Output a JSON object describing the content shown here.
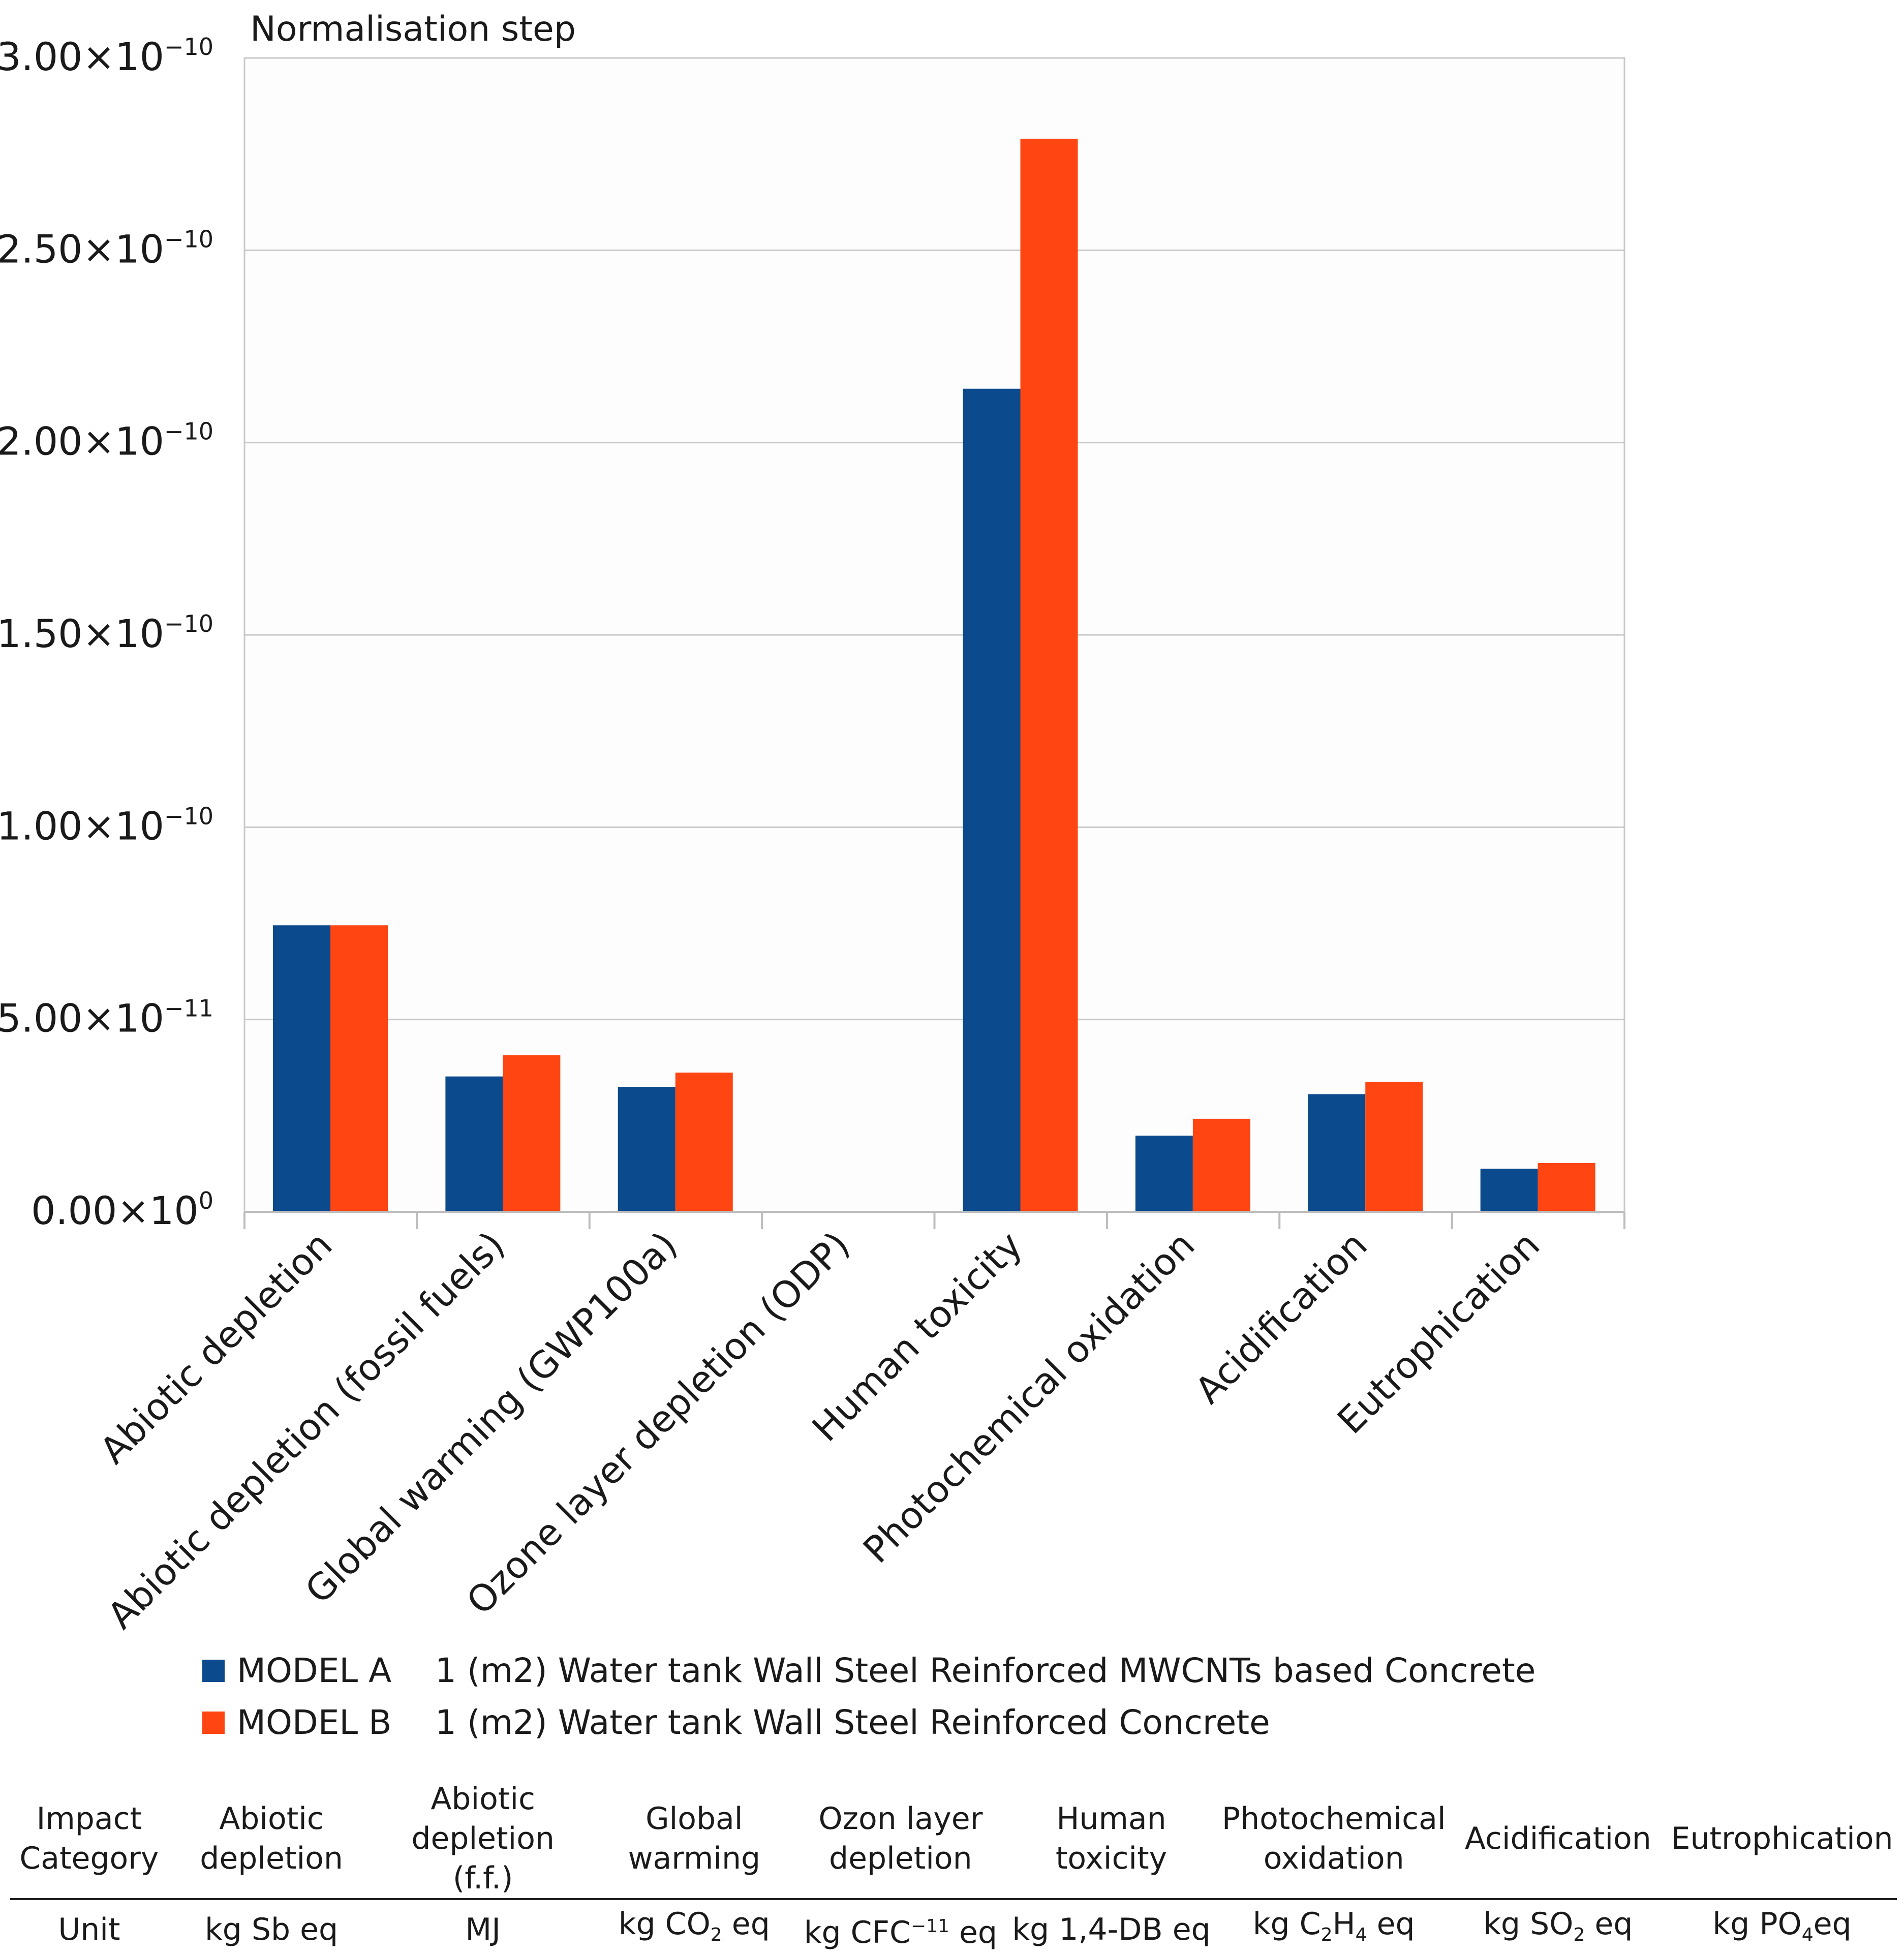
{
  "chart_data": {
    "type": "bar",
    "title": "Normalisation step",
    "xlabel": "",
    "ylabel": "",
    "ylim": [
      0,
      3e-10
    ],
    "grid": true,
    "yticks": [
      {
        "value": 0,
        "mantissa": "0.00×10",
        "exp": "0"
      },
      {
        "value": 5e-11,
        "mantissa": "5.00×10",
        "exp": "−11"
      },
      {
        "value": 1e-10,
        "mantissa": "1.00×10",
        "exp": "−10"
      },
      {
        "value": 1.5e-10,
        "mantissa": "1.50×10",
        "exp": "−10"
      },
      {
        "value": 2e-10,
        "mantissa": "2.00×10",
        "exp": "−10"
      },
      {
        "value": 2.5e-10,
        "mantissa": "2.50×10",
        "exp": "−10"
      },
      {
        "value": 3e-10,
        "mantissa": "3.00×10",
        "exp": "−10"
      }
    ],
    "categories": [
      "Abiotic depletion",
      "Abiotic depletion (fossil fuels)",
      "Global warming (GWP100a)",
      "Ozone layer depletion (ODP)",
      "Human toxicity",
      "Photochemical oxidation",
      "Acidification",
      "Eutrophication"
    ],
    "series": [
      {
        "name": "MODEL A",
        "color": "#0b4a8c",
        "values": [
          7.45e-11,
          3.52e-11,
          3.25e-11,
          0.0,
          2.14e-10,
          1.98e-11,
          3.06e-11,
          1.12e-11
        ]
      },
      {
        "name": "MODEL B",
        "color": "#fe4512",
        "values": [
          7.45e-11,
          4.07e-11,
          3.62e-11,
          0.0,
          2.79e-10,
          2.42e-11,
          3.38e-11,
          1.27e-11
        ]
      }
    ]
  },
  "legend": {
    "items": [
      {
        "model": "MODEL A",
        "description": "1 (m2) Water tank Wall Steel Reinforced MWCNTs based Concrete",
        "color": "#0b4a8c"
      },
      {
        "model": "MODEL B",
        "description": "1 (m2) Water tank Wall Steel Reinforced Concrete",
        "color": "#fe4512"
      }
    ]
  },
  "units_table": {
    "header": {
      "first": [
        "Impact",
        "Category"
      ],
      "columns": [
        [
          "Abiotic",
          "depletion"
        ],
        [
          "Abiotic",
          "depletion (f.f.)"
        ],
        [
          "Global",
          "warming"
        ],
        [
          "Ozon layer",
          "depletion"
        ],
        [
          "Human",
          "toxicity"
        ],
        [
          "Photochemical",
          "oxidation"
        ],
        [
          "Acidification"
        ],
        [
          "Eutrophication"
        ]
      ]
    },
    "unit_label": "Unit",
    "units": {
      "abiotic": "kg Sb eq",
      "abiotic_ff": "MJ",
      "gw_pre": "kg CO",
      "gw_sub": "2",
      "gw_post": " eq",
      "odp_pre": "kg CFC",
      "odp_sup": "−11",
      "odp_post": " eq",
      "ht": "kg 1,4-DB eq",
      "po_pre": "kg C",
      "po_sub1": "2",
      "po_mid": "H",
      "po_sub2": "4",
      "po_post": " eq",
      "ac_pre": "kg SO",
      "ac_sub": "2",
      "ac_post": " eq",
      "eu_pre": "kg PO",
      "eu_sub": "4",
      "eu_post": "eq"
    }
  }
}
